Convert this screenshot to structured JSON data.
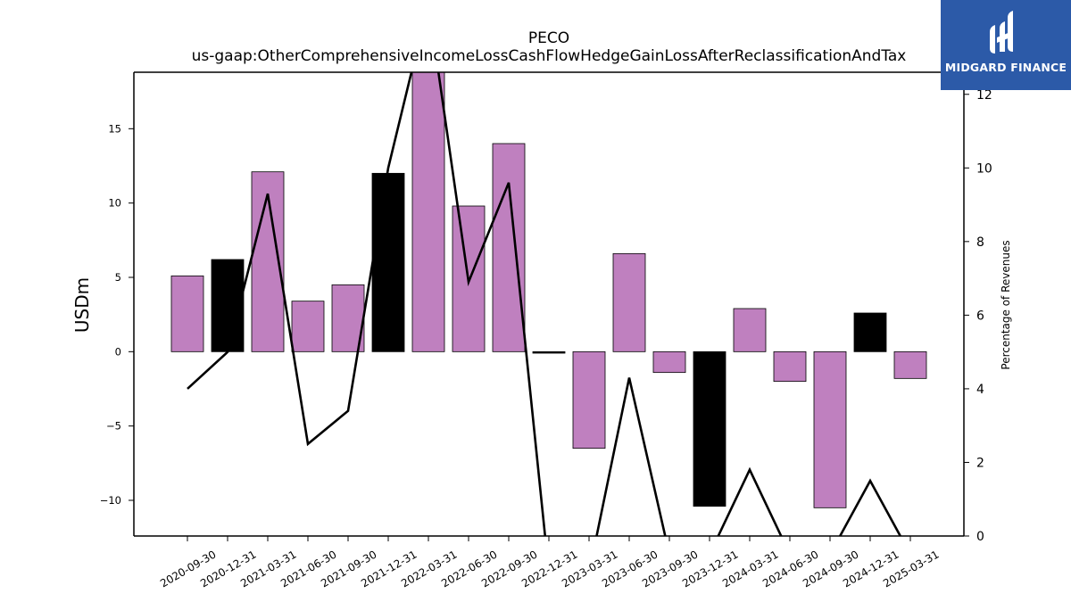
{
  "chart_data": {
    "type": "bar",
    "title": "PECO",
    "subtitle": "us-gaap:OtherComprehensiveIncomeLossCashFlowHedgeGainLossAfterReclassificationAndTax",
    "ylabel": "USDm",
    "y2label": "Percentage of Revenues",
    "categories": [
      "2020-09-30",
      "2020-12-31",
      "2021-03-31",
      "2021-06-30",
      "2021-09-30",
      "2021-12-31",
      "2022-03-31",
      "2022-06-30",
      "2022-09-30",
      "2022-12-31",
      "2023-03-31",
      "2023-06-30",
      "2023-09-30",
      "2023-12-31",
      "2024-03-31",
      "2024-06-30",
      "2024-09-30",
      "2024-12-31",
      "2025-03-31"
    ],
    "series": [
      {
        "type": "bar",
        "axis": "left",
        "values": [
          5.1,
          6.2,
          12.1,
          3.4,
          4.5,
          12.0,
          19.0,
          9.8,
          14.0,
          -0.1,
          -6.5,
          6.6,
          -1.4,
          -10.4,
          2.9,
          -2.0,
          -10.5,
          2.6,
          -1.8
        ],
        "colors": [
          "#bf80bf",
          "#000000",
          "#bf80bf",
          "#bf80bf",
          "#bf80bf",
          "#000000",
          "#bf80bf",
          "#bf80bf",
          "#bf80bf",
          "#000000",
          "#bf80bf",
          "#bf80bf",
          "#bf80bf",
          "#000000",
          "#bf80bf",
          "#bf80bf",
          "#bf80bf",
          "#000000",
          "#bf80bf"
        ]
      },
      {
        "type": "line",
        "axis": "right",
        "color": "#000000",
        "values": [
          4.0,
          5.0,
          9.3,
          2.5,
          3.4,
          10.0,
          14.5,
          6.9,
          9.6,
          -1.0,
          -1.0,
          4.3,
          -0.5,
          -0.5,
          1.8,
          -0.5,
          -0.5,
          1.5,
          -0.5
        ]
      }
    ],
    "ylim": [
      -12.4,
      18.8
    ],
    "y_ticks": [
      -10,
      -5,
      0,
      5,
      10,
      15
    ],
    "y_tick_labels": [
      "−10",
      "−5",
      "0",
      "5",
      "10",
      "15"
    ],
    "y2lim": [
      0,
      12.6
    ],
    "y2_ticks": [
      0,
      2,
      4,
      6,
      8,
      10,
      12
    ],
    "y2_tick_labels": [
      "0",
      "2",
      "4",
      "6",
      "8",
      "10",
      "12"
    ],
    "grid": false,
    "legend": "none"
  },
  "logo": {
    "text": "MIDGARD FINANCE",
    "background": "#2c5aa8",
    "icon": "midgard-bars-logo-icon"
  }
}
